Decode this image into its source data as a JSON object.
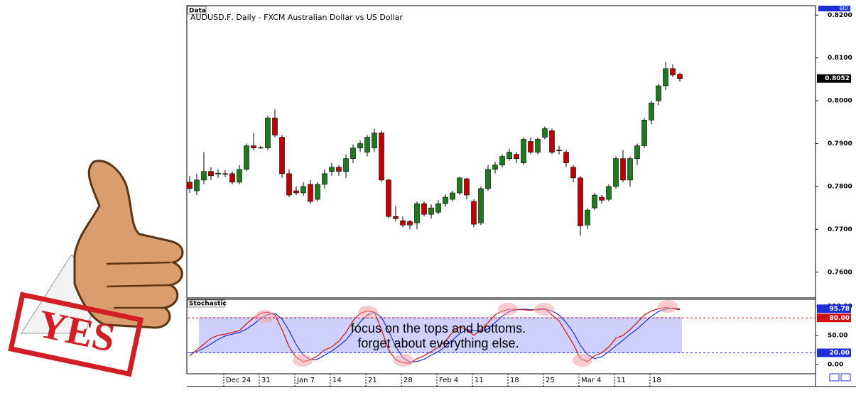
{
  "stamp_text": "YES",
  "chart_data": [
    {
      "type": "candlestick",
      "label": "Data",
      "title": "AUDUSD.F, Daily - FXCM Australian Dollar vs US Dollar",
      "price_label": "BID",
      "categories": [
        null,
        null,
        null,
        null,
        null,
        "Dec 24",
        null,
        null,
        null,
        null,
        "31",
        null,
        null,
        null,
        null,
        "Jan 7",
        null,
        null,
        null,
        null,
        "14",
        null,
        null,
        null,
        null,
        "21",
        null,
        null,
        null,
        null,
        "28",
        null,
        null,
        null,
        null,
        "Feb 4",
        null,
        null,
        null,
        null,
        "11",
        null,
        null,
        null,
        null,
        "18",
        null,
        null,
        null,
        null,
        "25",
        null,
        null,
        null,
        null,
        "Mar 4",
        null,
        null,
        null,
        null,
        "11",
        null,
        null,
        null,
        null,
        "18",
        null,
        null,
        null,
        null
      ],
      "open": [
        0.781,
        0.779,
        0.7815,
        0.7835,
        0.7829,
        0.783,
        0.783,
        0.781,
        0.784,
        0.7895,
        0.789,
        0.789,
        0.796,
        0.7915,
        0.783,
        0.779,
        0.7785,
        0.7805,
        0.777,
        0.7805,
        0.7835,
        0.7845,
        0.7835,
        0.7865,
        0.789,
        0.788,
        0.789,
        0.7925,
        0.7815,
        0.773,
        0.772,
        0.7718,
        0.7715,
        0.776,
        0.7735,
        0.774,
        0.776,
        0.777,
        0.7785,
        0.7818,
        0.7765,
        0.7715,
        0.7795,
        0.784,
        0.785,
        0.7865,
        0.7875,
        0.7855,
        0.7905,
        0.788,
        0.7915,
        0.793,
        0.7885,
        0.788,
        0.7845,
        0.782,
        0.771,
        0.775,
        0.7775,
        0.777,
        0.78,
        0.7865,
        0.7815,
        0.7865,
        0.7895,
        0.7955,
        0.8,
        0.8035,
        0.8075,
        0.8062
      ],
      "high": [
        0.7825,
        0.783,
        0.788,
        0.7845,
        0.784,
        0.7838,
        0.7835,
        0.785,
        0.79,
        0.7925,
        0.7895,
        0.7965,
        0.798,
        0.792,
        0.784,
        0.78,
        0.781,
        0.7815,
        0.781,
        0.784,
        0.7855,
        0.785,
        0.7875,
        0.7898,
        0.7908,
        0.792,
        0.7935,
        0.793,
        0.7818,
        0.7755,
        0.773,
        0.7722,
        0.7765,
        0.7765,
        0.7758,
        0.7768,
        0.7782,
        0.779,
        0.7822,
        0.782,
        0.777,
        0.78,
        0.785,
        0.7858,
        0.7875,
        0.7888,
        0.788,
        0.7915,
        0.7915,
        0.7915,
        0.794,
        0.7935,
        0.7895,
        0.7885,
        0.785,
        0.7825,
        0.775,
        0.7785,
        0.778,
        0.7805,
        0.787,
        0.7885,
        0.787,
        0.79,
        0.796,
        0.8,
        0.804,
        0.809,
        0.8085,
        0.8065
      ],
      "low": [
        0.7785,
        0.778,
        0.7805,
        0.7815,
        0.782,
        0.7822,
        0.7805,
        0.7805,
        0.7835,
        0.7885,
        0.7888,
        0.7885,
        0.7915,
        0.782,
        0.7775,
        0.778,
        0.7778,
        0.776,
        0.7765,
        0.7795,
        0.7825,
        0.7825,
        0.782,
        0.7855,
        0.788,
        0.787,
        0.788,
        0.781,
        0.7725,
        0.7718,
        0.7705,
        0.77,
        0.77,
        0.773,
        0.7725,
        0.7735,
        0.7752,
        0.7765,
        0.778,
        0.777,
        0.7705,
        0.771,
        0.779,
        0.783,
        0.7845,
        0.786,
        0.7855,
        0.785,
        0.7875,
        0.7875,
        0.791,
        0.7875,
        0.7875,
        0.7845,
        0.781,
        0.7685,
        0.77,
        0.7745,
        0.776,
        0.7765,
        0.7795,
        0.781,
        0.78,
        0.785,
        0.789,
        0.7945,
        0.799,
        0.8025,
        0.8055,
        0.8045
      ],
      "close": [
        0.7795,
        0.7815,
        0.7835,
        0.7825,
        0.7831,
        0.7829,
        0.781,
        0.784,
        0.7895,
        0.789,
        0.7891,
        0.796,
        0.792,
        0.783,
        0.778,
        0.7785,
        0.78,
        0.7765,
        0.7805,
        0.783,
        0.7845,
        0.7835,
        0.7865,
        0.789,
        0.79,
        0.7915,
        0.7925,
        0.7815,
        0.773,
        0.7725,
        0.771,
        0.771,
        0.776,
        0.7735,
        0.775,
        0.776,
        0.7775,
        0.7785,
        0.782,
        0.778,
        0.7712,
        0.7795,
        0.784,
        0.785,
        0.787,
        0.788,
        0.7865,
        0.791,
        0.788,
        0.791,
        0.7935,
        0.788,
        0.7884,
        0.7855,
        0.782,
        0.7708,
        0.7745,
        0.778,
        0.7768,
        0.78,
        0.7865,
        0.7815,
        0.7865,
        0.7895,
        0.7955,
        0.7995,
        0.8035,
        0.8075,
        0.806,
        0.8052
      ],
      "up_color": "#1f7a1f",
      "down_color": "#c00000",
      "ylim": [
        0.754,
        0.8222
      ],
      "yticks": [
        {
          "value": 0.76,
          "label": "0.7600"
        },
        {
          "value": 0.77,
          "label": "0.7700"
        },
        {
          "value": 0.78,
          "label": "0.7800"
        },
        {
          "value": 0.79,
          "label": "0.7900"
        },
        {
          "value": 0.8,
          "label": "0.8000"
        },
        {
          "value": 0.81,
          "label": "0.8100"
        },
        {
          "value": 0.82,
          "label": "0.8200"
        }
      ]
    },
    {
      "type": "line",
      "label": "Stochastic",
      "annotation": [
        "focus on the tops and bottoms.",
        "forget about everything else."
      ],
      "series": [
        {
          "name": "%K",
          "color": "#d01010",
          "values": [
            15,
            25,
            35,
            45,
            50,
            52,
            55,
            58,
            70,
            80,
            88,
            90,
            85,
            60,
            30,
            12,
            5,
            8,
            15,
            25,
            30,
            40,
            55,
            75,
            88,
            92,
            90,
            60,
            25,
            8,
            3,
            2,
            10,
            15,
            22,
            30,
            40,
            55,
            65,
            60,
            50,
            60,
            72,
            85,
            92,
            95,
            95,
            94,
            93,
            95,
            96,
            85,
            75,
            55,
            35,
            10,
            5,
            15,
            20,
            30,
            45,
            50,
            60,
            72,
            85,
            92,
            96,
            98,
            96,
            94
          ]
        },
        {
          "name": "%D",
          "color": "#1c2fd8",
          "values": [
            20,
            22,
            28,
            35,
            43,
            49,
            52,
            55,
            61,
            69,
            79,
            86,
            88,
            78,
            58,
            34,
            16,
            8,
            9,
            16,
            23,
            32,
            42,
            57,
            73,
            85,
            90,
            81,
            58,
            31,
            12,
            4,
            5,
            9,
            16,
            22,
            31,
            42,
            53,
            60,
            58,
            57,
            61,
            72,
            83,
            91,
            94,
            95,
            94,
            94,
            95,
            92,
            85,
            72,
            55,
            33,
            17,
            10,
            13,
            22,
            32,
            42,
            52,
            61,
            72,
            83,
            91,
            95,
            97,
            95.78
          ]
        }
      ],
      "levels": [
        {
          "value": 80,
          "label": "80.00",
          "color": "#d01010"
        },
        {
          "value": 20,
          "label": "20.00",
          "color": "#1c2fd8"
        }
      ],
      "ylim": [
        -16,
        112
      ],
      "yticks": [
        {
          "value": 0,
          "label": "0.00"
        },
        {
          "value": 50,
          "label": "50.00"
        },
        {
          "value": 100,
          "label": "100.00"
        }
      ]
    }
  ]
}
